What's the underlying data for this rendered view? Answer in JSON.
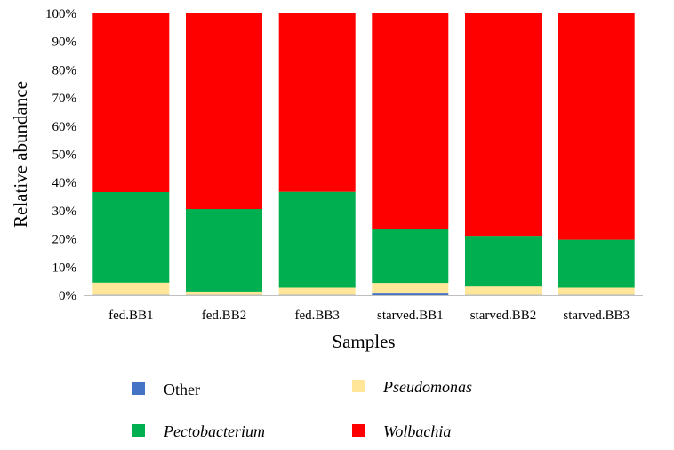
{
  "chart_data": {
    "type": "bar",
    "stacked": true,
    "categories": [
      "fed.BB1",
      "fed.BB2",
      "fed.BB3",
      "starved.BB1",
      "starved.BB2",
      "starved.BB3"
    ],
    "series": [
      {
        "name": "Other",
        "color": "#4472C4",
        "values": [
          0.1,
          0.1,
          0.1,
          0.6,
          0.1,
          0.1
        ]
      },
      {
        "name": "Pseudomonas",
        "color": "#FFE699",
        "values": [
          4.4,
          1.2,
          2.6,
          3.8,
          3.0,
          2.6
        ]
      },
      {
        "name": "Pectobacterium",
        "color": "#00B050",
        "values": [
          32.1,
          29.3,
          34.0,
          19.2,
          18.0,
          17.0
        ]
      },
      {
        "name": "Wolbachia",
        "color": "#FF0000",
        "values": [
          63.4,
          69.4,
          63.3,
          76.4,
          78.9,
          80.3
        ]
      }
    ],
    "xlabel": "Samples",
    "ylabel": "Relative abundance",
    "ylim": [
      0,
      100
    ],
    "yticks": [
      "0%",
      "10%",
      "20%",
      "30%",
      "40%",
      "50%",
      "60%",
      "70%",
      "80%",
      "90%",
      "100%"
    ],
    "grid": false,
    "legend_position": "bottom",
    "legend_italic": [
      "Pseudomonas",
      "Pectobacterium",
      "Wolbachia"
    ]
  }
}
